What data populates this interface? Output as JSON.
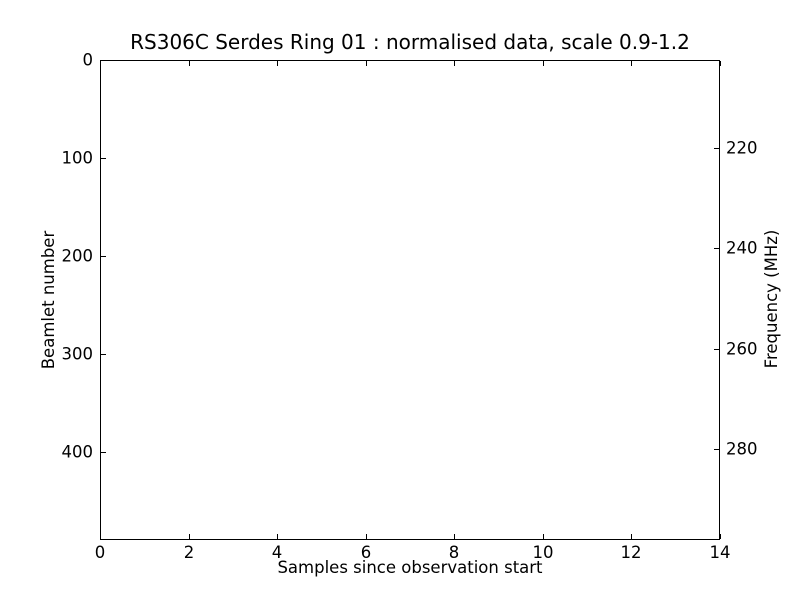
{
  "figure": {
    "background": "#ffffff",
    "line_color": "#000000",
    "text_color": "#000000"
  },
  "chart_data": {
    "type": "heatmap",
    "title": "RS306C Serdes Ring 01 : normalised data, scale 0.9-1.2",
    "xlabel": "Samples since observation start",
    "ylabel_left": "Beamlet number",
    "ylabel_right": "Frequency (MHz)",
    "xlim": [
      0,
      14
    ],
    "x_ticks": [
      0,
      2,
      4,
      6,
      8,
      10,
      12,
      14
    ],
    "ylim_left": [
      0,
      490
    ],
    "y_left_ticks": [
      0,
      100,
      200,
      300,
      400
    ],
    "y_left_direction": "increasing-downward",
    "ylim_right": [
      202.5,
      298.1
    ],
    "y_right_ticks": [
      220,
      240,
      260,
      280
    ],
    "y_right_direction": "increasing-downward",
    "tick_direction": "in",
    "grid": false,
    "legend": null,
    "series": [],
    "plot_area_content": "empty (uniform white, no data rendered)"
  }
}
